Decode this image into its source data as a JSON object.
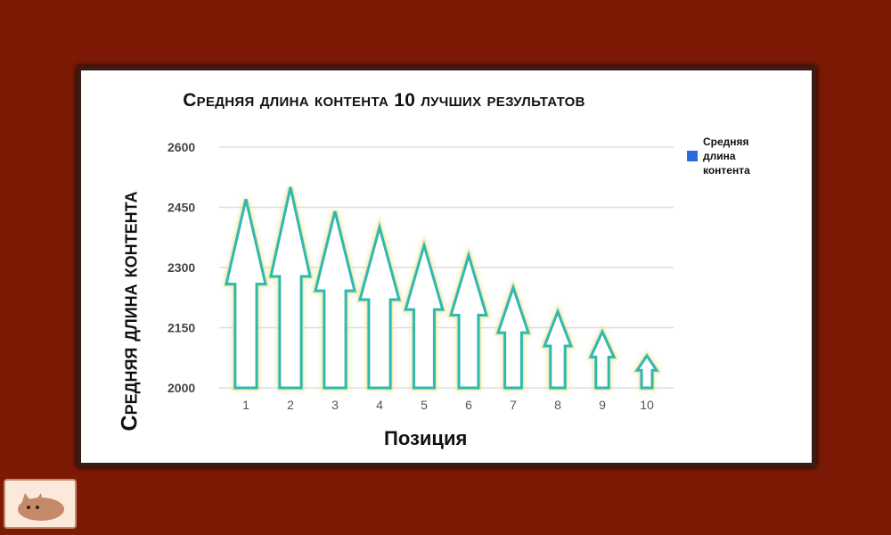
{
  "chart_data": {
    "type": "bar",
    "title": "Средняя длина контента 10 лучших результатов",
    "xlabel": "Позиция",
    "ylabel": "Средняя длина контента",
    "categories": [
      "1",
      "2",
      "3",
      "4",
      "5",
      "6",
      "7",
      "8",
      "9",
      "10"
    ],
    "series": [
      {
        "name": "Средняя длина контента",
        "values": [
          2470,
          2500,
          2440,
          2400,
          2355,
          2330,
          2250,
          2190,
          2140,
          2080
        ]
      }
    ],
    "ylim": [
      2000,
      2600
    ],
    "yticks": [
      "2000",
      "2150",
      "2300",
      "2450",
      "2600"
    ],
    "grid": true,
    "legend": "right",
    "mark_style": "arrow",
    "colors": {
      "arrow": "#2fb8b0",
      "glow": "#e6e08a",
      "legend": "#2a6cdc",
      "background": "#7c1a06"
    }
  },
  "logo": "cat-icon"
}
